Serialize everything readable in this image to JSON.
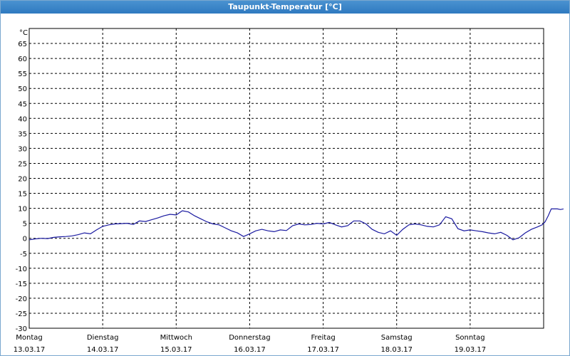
{
  "window": {
    "title": "Taupunkt-Temperatur [°C]"
  },
  "chart_data": {
    "type": "line",
    "title": "Taupunkt-Temperatur [°C]",
    "ylabel": "°C",
    "ylim": [
      -30,
      70
    ],
    "yticks": [
      65,
      60,
      55,
      50,
      45,
      40,
      35,
      30,
      25,
      20,
      15,
      10,
      5,
      0,
      -5,
      -10,
      -15,
      -20,
      -25,
      -30
    ],
    "xlim": [
      "13.03.17 00:00",
      "20.03.17 00:00"
    ],
    "grid": true,
    "days": [
      {
        "name": "Montag",
        "date": "13.03.17"
      },
      {
        "name": "Dienstag",
        "date": "14.03.17"
      },
      {
        "name": "Mittwoch",
        "date": "15.03.17"
      },
      {
        "name": "Donnerstag",
        "date": "16.03.17"
      },
      {
        "name": "Freitag",
        "date": "17.03.17"
      },
      {
        "name": "Samstag",
        "date": "18.03.17"
      },
      {
        "name": "Sonntag",
        "date": "19.03.17"
      }
    ],
    "series": [
      {
        "color": "#1a1aa0",
        "points": [
          [
            "13.03.17 00:00",
            -0.5
          ],
          [
            "13.03.17 02:00",
            -0.2
          ],
          [
            "13.03.17 04:00",
            0
          ],
          [
            "13.03.17 06:00",
            -0.1
          ],
          [
            "13.03.17 08:00",
            0.3
          ],
          [
            "13.03.17 10:00",
            0.5
          ],
          [
            "13.03.17 12:00",
            0.6
          ],
          [
            "13.03.17 14:00",
            0.8
          ],
          [
            "13.03.17 16:00",
            1.2
          ],
          [
            "13.03.17 18:00",
            1.8
          ],
          [
            "13.03.17 20:00",
            1.5
          ],
          [
            "13.03.17 22:00",
            2.8
          ],
          [
            "14.03.17 00:00",
            4.0
          ],
          [
            "14.03.17 02:00",
            4.5
          ],
          [
            "14.03.17 04:00",
            4.8
          ],
          [
            "14.03.17 06:00",
            4.9
          ],
          [
            "14.03.17 08:00",
            5.0
          ],
          [
            "14.03.17 10:00",
            4.6
          ],
          [
            "14.03.17 12:00",
            5.8
          ],
          [
            "14.03.17 14:00",
            5.6
          ],
          [
            "14.03.17 16:00",
            6.2
          ],
          [
            "14.03.17 18:00",
            6.8
          ],
          [
            "14.03.17 20:00",
            7.5
          ],
          [
            "14.03.17 22:00",
            8.0
          ],
          [
            "15.03.17 00:00",
            7.8
          ],
          [
            "15.03.17 02:00",
            9.2
          ],
          [
            "15.03.17 04:00",
            8.8
          ],
          [
            "15.03.17 06:00",
            7.5
          ],
          [
            "15.03.17 08:00",
            6.5
          ],
          [
            "15.03.17 10:00",
            5.5
          ],
          [
            "15.03.17 12:00",
            4.8
          ],
          [
            "15.03.17 14:00",
            4.5
          ],
          [
            "15.03.17 16:00",
            3.5
          ],
          [
            "15.03.17 18:00",
            2.5
          ],
          [
            "15.03.17 20:00",
            1.8
          ],
          [
            "15.03.17 22:00",
            0.6
          ],
          [
            "16.03.17 00:00",
            1.5
          ],
          [
            "16.03.17 02:00",
            2.5
          ],
          [
            "16.03.17 04:00",
            3.0
          ],
          [
            "16.03.17 06:00",
            2.5
          ],
          [
            "16.03.17 08:00",
            2.2
          ],
          [
            "16.03.17 10:00",
            2.8
          ],
          [
            "16.03.17 12:00",
            2.6
          ],
          [
            "16.03.17 14:00",
            4.2
          ],
          [
            "16.03.17 16:00",
            4.8
          ],
          [
            "16.03.17 18:00",
            4.5
          ],
          [
            "16.03.17 20:00",
            4.6
          ],
          [
            "16.03.17 22:00",
            5.0
          ],
          [
            "17.03.17 00:00",
            4.8
          ],
          [
            "17.03.17 02:00",
            5.3
          ],
          [
            "17.03.17 04:00",
            4.5
          ],
          [
            "17.03.17 06:00",
            3.8
          ],
          [
            "17.03.17 08:00",
            4.2
          ],
          [
            "17.03.17 10:00",
            5.8
          ],
          [
            "17.03.17 12:00",
            5.8
          ],
          [
            "17.03.17 14:00",
            4.8
          ],
          [
            "17.03.17 16:00",
            3.0
          ],
          [
            "17.03.17 18:00",
            2.0
          ],
          [
            "17.03.17 20:00",
            1.5
          ],
          [
            "17.03.17 22:00",
            2.5
          ],
          [
            "18.03.17 00:00",
            1.0
          ],
          [
            "18.03.17 02:00",
            3.0
          ],
          [
            "18.03.17 04:00",
            4.5
          ],
          [
            "18.03.17 06:00",
            4.8
          ],
          [
            "18.03.17 08:00",
            4.5
          ],
          [
            "18.03.17 10:00",
            4.0
          ],
          [
            "18.03.17 12:00",
            3.8
          ],
          [
            "18.03.17 14:00",
            4.5
          ],
          [
            "18.03.17 16:00",
            7.2
          ],
          [
            "18.03.17 18:00",
            6.5
          ],
          [
            "18.03.17 20:00",
            3.2
          ],
          [
            "18.03.17 22:00",
            2.5
          ],
          [
            "19.03.17 00:00",
            2.8
          ],
          [
            "19.03.17 02:00",
            2.5
          ],
          [
            "19.03.17 04:00",
            2.2
          ],
          [
            "19.03.17 06:00",
            1.8
          ],
          [
            "19.03.17 08:00",
            1.5
          ],
          [
            "19.03.17 10:00",
            2.0
          ],
          [
            "19.03.17 12:00",
            1.0
          ],
          [
            "19.03.17 14:00",
            -0.5
          ],
          [
            "19.03.17 16:00",
            0.2
          ],
          [
            "19.03.17 18:00",
            1.8
          ],
          [
            "19.03.17 20:00",
            3.0
          ],
          [
            "19.03.17 22:00",
            3.8
          ],
          [
            "19.03.17 23:30",
            4.5
          ],
          [
            "20.03.17 00:30",
            5.5
          ],
          [
            "20.03.17 01:30",
            7.5
          ],
          [
            "20.03.17 02:30",
            9.8
          ],
          [
            "20.03.17 03:30",
            9.8
          ],
          [
            "20.03.17 04:30",
            9.8
          ],
          [
            "20.03.17 05:30",
            9.6
          ],
          [
            "20.03.17 06:30",
            9.8
          ]
        ]
      }
    ]
  }
}
